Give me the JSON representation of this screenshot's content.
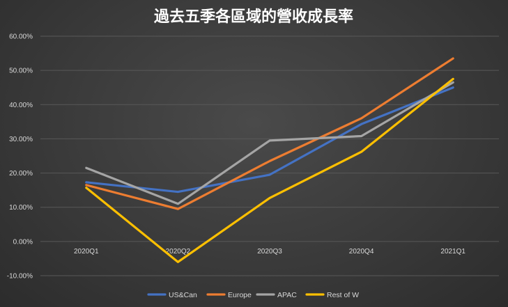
{
  "chart_data": {
    "type": "line",
    "title": "過去五季各區域的營收成長率",
    "categories": [
      "2020Q1",
      "2020Q2",
      "2020Q3",
      "2020Q4",
      "2021Q1"
    ],
    "y_tick_labels": [
      "60.00%",
      "50.00%",
      "40.00%",
      "30.00%",
      "20.00%",
      "10.00%",
      "0.00%",
      "-10.00%"
    ],
    "y_ticks": [
      60,
      50,
      40,
      30,
      20,
      10,
      0,
      -10
    ],
    "ylim": [
      -10,
      60
    ],
    "xlabel": "",
    "ylabel": "",
    "grid": true,
    "legend_position": "bottom",
    "series": [
      {
        "name": "US&Can",
        "color": "#4472c4",
        "values": [
          17.3,
          14.5,
          19.5,
          34.3,
          45.0
        ]
      },
      {
        "name": "Europe",
        "color": "#ed7d31",
        "values": [
          16.5,
          9.5,
          23.5,
          36.0,
          53.5
        ]
      },
      {
        "name": "APAC",
        "color": "#a5a5a5",
        "values": [
          21.5,
          11.0,
          29.5,
          30.8,
          46.5
        ]
      },
      {
        "name": "Rest of W",
        "color": "#ffc000",
        "values": [
          15.7,
          -6.0,
          12.7,
          26.2,
          47.5
        ]
      }
    ]
  }
}
